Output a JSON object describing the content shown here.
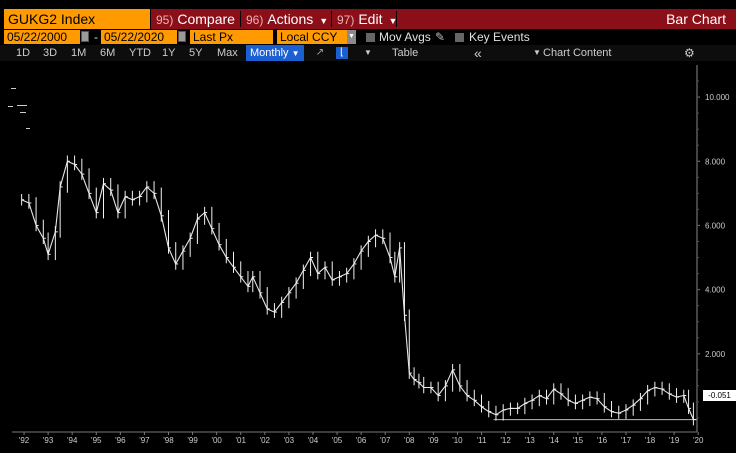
{
  "header": {
    "ticker": "GUKG2 Index",
    "compare": {
      "code": "95)",
      "label": "Compare"
    },
    "actions": {
      "code": "96)",
      "label": "Actions"
    },
    "edit": {
      "code": "97)",
      "label": "Edit"
    },
    "title": "Bar Chart"
  },
  "controls": {
    "start_date": "05/22/2000",
    "end_date": "05/22/2020",
    "field": "Last Px",
    "currency": "Local CCY",
    "mov_avgs": "Mov Avgs",
    "key_events": "Key Events"
  },
  "toolbar": {
    "periods": [
      "1D",
      "3D",
      "1M",
      "6M",
      "YTD",
      "1Y",
      "5Y",
      "Max"
    ],
    "frequency": "Monthly",
    "table": "Table",
    "chart_content": "Chart Content",
    "collapse_icon": "double-chevron-left-icon",
    "settings_icon": "gear-icon"
  },
  "colors": {
    "accent_orange": "#ff9a00",
    "header_red": "#8b0f19",
    "selected_blue": "#1b5fd0",
    "price_line": "#e6e6e6"
  },
  "chart_data": {
    "type": "line",
    "x_tick_labels": [
      "'92",
      "'93",
      "'94",
      "'95",
      "'96",
      "'97",
      "'98",
      "'99",
      "'00",
      "'01",
      "'02",
      "'03",
      "'04",
      "'05",
      "'06",
      "'07",
      "'08",
      "'09",
      "'10",
      "'11",
      "'12",
      "'13",
      "'14",
      "'15",
      "'16",
      "'17",
      "'18",
      "'19",
      "'20"
    ],
    "y_tick_labels": [
      "10.000",
      "8.000",
      "6.000",
      "4.000",
      "2.000"
    ],
    "y_ticks": [
      10,
      8,
      6,
      4,
      2
    ],
    "ylim": [
      -0.25,
      11.0
    ],
    "xlim": [
      1992.0,
      2020.45
    ],
    "last_value": -0.051,
    "last_value_label": "-0.051",
    "grid": false,
    "series": [
      {
        "x": [
          1992.4,
          1992.7,
          1993.0,
          1993.3,
          1993.5,
          1993.8,
          1994.0,
          1994.3,
          1994.6,
          1994.9,
          1995.2,
          1995.5,
          1995.8,
          1996.1,
          1996.4,
          1996.7,
          1997.0,
          1997.3,
          1997.6,
          1997.9,
          1998.2,
          1998.5,
          1998.8,
          1999.1,
          1999.4,
          1999.7,
          2000.0,
          2000.3,
          2000.6,
          2000.9,
          2001.2,
          2001.5,
          2001.8,
          2002.0,
          2002.3,
          2002.6,
          2002.9,
          2003.2,
          2003.5,
          2003.8,
          2004.1,
          2004.4,
          2004.7,
          2005.0,
          2005.3,
          2005.6,
          2005.9,
          2006.2,
          2006.5,
          2006.8,
          2007.1,
          2007.4,
          2007.7,
          2007.9,
          2008.1,
          2008.3,
          2008.5,
          2008.7,
          2008.9,
          2009.1,
          2009.4,
          2009.7,
          2010.0,
          2010.3,
          2010.6,
          2010.9,
          2011.2,
          2011.5,
          2011.8,
          2012.1,
          2012.4,
          2012.7,
          2013.0,
          2013.3,
          2013.6,
          2013.9,
          2014.2,
          2014.5,
          2014.8,
          2015.1,
          2015.4,
          2015.7,
          2016.0,
          2016.3,
          2016.6,
          2016.9,
          2017.2,
          2017.5,
          2017.8,
          2018.1,
          2018.4,
          2018.7,
          2019.0,
          2019.3,
          2019.6,
          2019.9,
          2020.1,
          2020.3
        ],
        "y": [
          6.8,
          6.7,
          6.0,
          5.6,
          5.1,
          5.8,
          7.2,
          8.0,
          7.9,
          7.6,
          7.0,
          6.4,
          7.3,
          7.1,
          6.4,
          6.9,
          6.8,
          6.9,
          7.2,
          7.0,
          6.3,
          5.3,
          4.8,
          5.2,
          5.6,
          6.2,
          6.4,
          5.9,
          5.4,
          5.0,
          4.7,
          4.4,
          4.1,
          4.4,
          3.9,
          3.4,
          3.3,
          3.6,
          3.9,
          4.2,
          4.6,
          5.0,
          4.5,
          4.7,
          4.3,
          4.4,
          4.5,
          4.8,
          5.2,
          5.5,
          5.7,
          5.6,
          5.0,
          4.4,
          5.3,
          3.2,
          1.4,
          1.2,
          1.1,
          0.95,
          0.95,
          0.7,
          1.0,
          1.5,
          1.0,
          0.7,
          0.55,
          0.35,
          0.2,
          0.1,
          0.25,
          0.3,
          0.3,
          0.45,
          0.55,
          0.7,
          0.6,
          0.9,
          0.75,
          0.55,
          0.45,
          0.55,
          0.65,
          0.6,
          0.35,
          0.2,
          0.15,
          0.25,
          0.4,
          0.6,
          0.85,
          0.95,
          0.9,
          0.75,
          0.65,
          0.7,
          0.3,
          -0.05
        ]
      }
    ]
  }
}
